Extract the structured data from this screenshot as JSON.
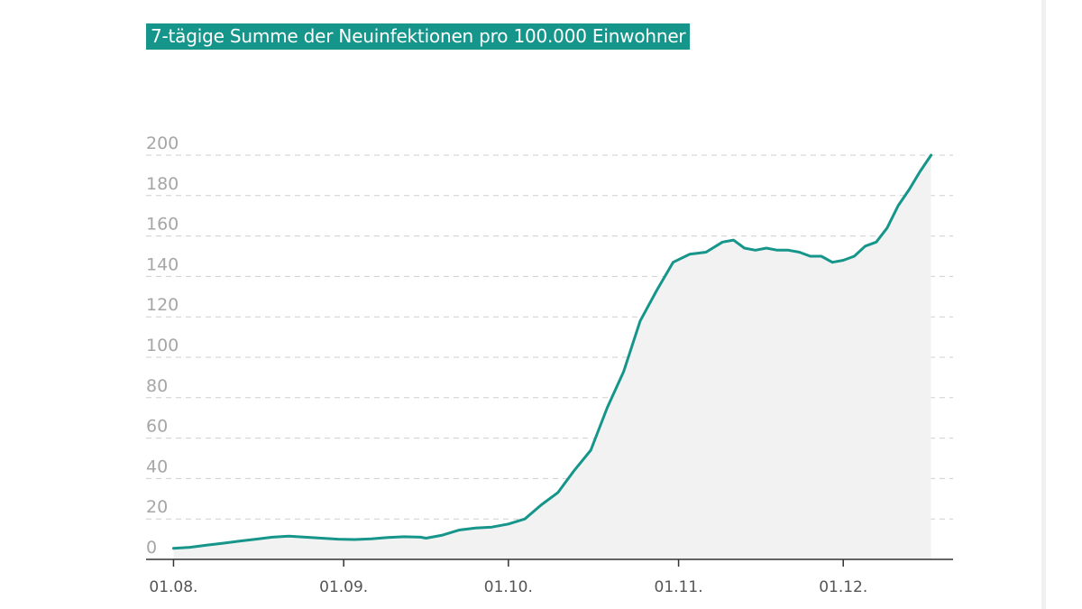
{
  "chart_data": {
    "type": "area",
    "title": "7-tägige Summe der Neuinfektionen pro 100.000 Einwohner",
    "xlabel": "",
    "ylabel": "",
    "ylim": [
      0,
      200
    ],
    "y_ticks": [
      "0",
      "20",
      "40",
      "60",
      "80",
      "100",
      "120",
      "140",
      "160",
      "180",
      "200"
    ],
    "x_ticks": [
      "01.08.",
      "01.09.",
      "01.10.",
      "01.11.",
      "01.12."
    ],
    "grid": true,
    "colors": {
      "line": "#16958b",
      "fill": "#f2f2f2",
      "grid": "#cfcfcf",
      "title_bg": "#16958b"
    },
    "series": [
      {
        "x": [
          "2020-08-01",
          "2020-08-04",
          "2020-08-07",
          "2020-08-10",
          "2020-08-13",
          "2020-08-16",
          "2020-08-19",
          "2020-08-22",
          "2020-08-25",
          "2020-08-28",
          "2020-08-31",
          "2020-09-03",
          "2020-09-06",
          "2020-09-09",
          "2020-09-12",
          "2020-09-15",
          "2020-09-16",
          "2020-09-19",
          "2020-09-22",
          "2020-09-25",
          "2020-09-28",
          "2020-10-01",
          "2020-10-04",
          "2020-10-07",
          "2020-10-10",
          "2020-10-13",
          "2020-10-16",
          "2020-10-19",
          "2020-10-22",
          "2020-10-25",
          "2020-10-28",
          "2020-10-31",
          "2020-11-03",
          "2020-11-06",
          "2020-11-09",
          "2020-11-11",
          "2020-11-13",
          "2020-11-15",
          "2020-11-17",
          "2020-11-19",
          "2020-11-21",
          "2020-11-23",
          "2020-11-25",
          "2020-11-27",
          "2020-11-29",
          "2020-12-01",
          "2020-12-03",
          "2020-12-05",
          "2020-12-07",
          "2020-12-09",
          "2020-12-11",
          "2020-12-13",
          "2020-12-15",
          "2020-12-17"
        ],
        "values": [
          5.5,
          6,
          7,
          8,
          9,
          10,
          11,
          11.5,
          11,
          10.5,
          10,
          9.8,
          10.2,
          10.8,
          11.2,
          11,
          10.5,
          12,
          14.5,
          15.5,
          16,
          17.5,
          20,
          27,
          33,
          44,
          54,
          75,
          93,
          118,
          133,
          147,
          151,
          152,
          157,
          158,
          154,
          153,
          154,
          153,
          153,
          152,
          150,
          150,
          147,
          148,
          150,
          155,
          157,
          164,
          175,
          183,
          192,
          200
        ]
      }
    ]
  }
}
